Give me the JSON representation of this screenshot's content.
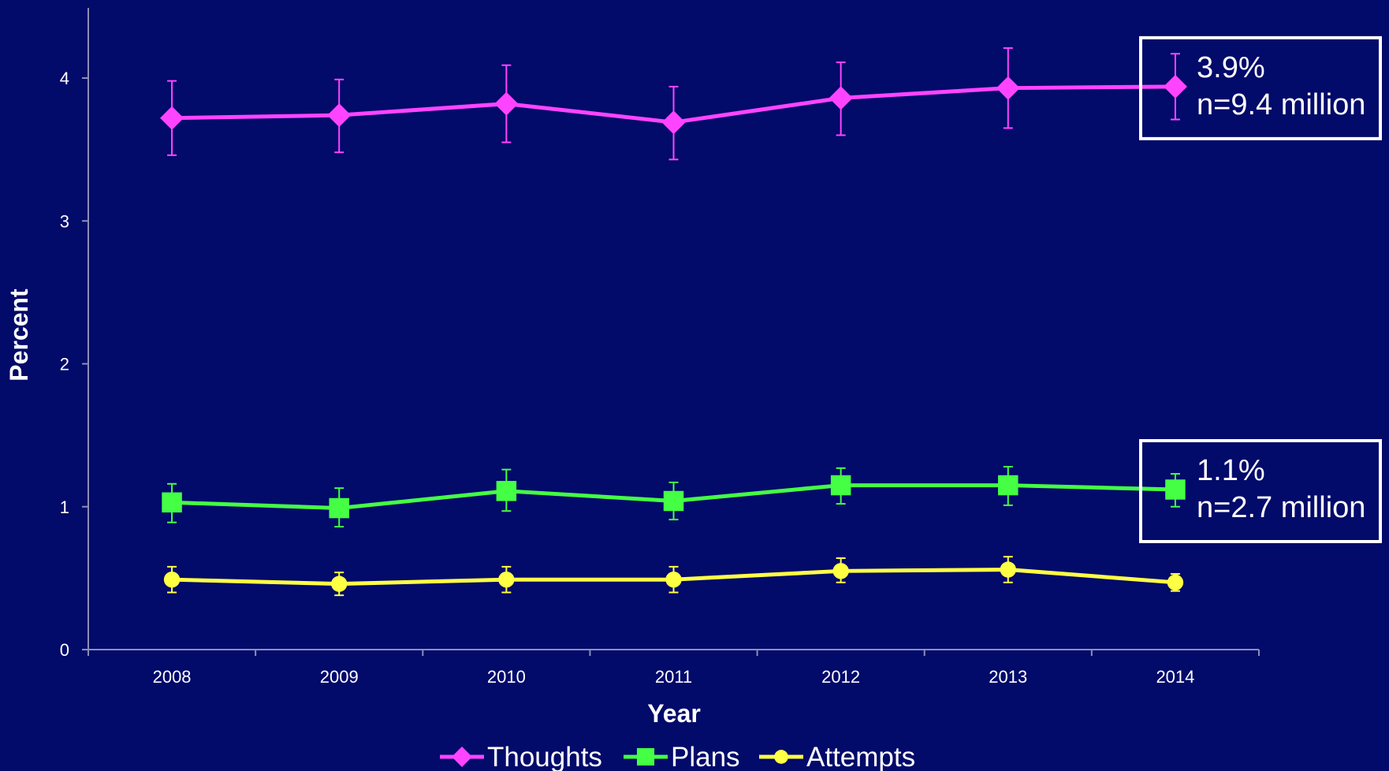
{
  "colors": {
    "background": "#020a6a",
    "axis": "#8a8fb8",
    "text": "#ffffff",
    "thoughts": "#ff44ff",
    "plans": "#44ff44",
    "attempts": "#ffff44"
  },
  "chart_data": {
    "type": "line",
    "title": "",
    "xlabel": "Year",
    "ylabel": "Percent",
    "ylim": [
      0,
      4.5
    ],
    "yticks": [
      "0",
      "1",
      "2",
      "3",
      "4"
    ],
    "categories": [
      "2008",
      "2009",
      "2010",
      "2011",
      "2012",
      "2013",
      "2014"
    ],
    "grid": false,
    "legend": "bottom",
    "error_bars": true,
    "series": [
      {
        "name": "Thoughts",
        "marker": "diamond",
        "color": "#ff44ff",
        "values": [
          3.72,
          3.74,
          3.82,
          3.69,
          3.86,
          3.93,
          3.94
        ],
        "lower": [
          3.46,
          3.48,
          3.55,
          3.43,
          3.6,
          3.65,
          3.71
        ],
        "upper": [
          3.98,
          3.99,
          4.09,
          3.94,
          4.11,
          4.21,
          4.17
        ]
      },
      {
        "name": "Plans",
        "marker": "square",
        "color": "#44ff44",
        "values": [
          1.03,
          0.99,
          1.11,
          1.04,
          1.15,
          1.15,
          1.12
        ],
        "lower": [
          0.89,
          0.86,
          0.97,
          0.91,
          1.02,
          1.01,
          1.0
        ],
        "upper": [
          1.16,
          1.13,
          1.26,
          1.17,
          1.27,
          1.28,
          1.23
        ]
      },
      {
        "name": "Attempts",
        "marker": "circle",
        "color": "#ffff44",
        "values": [
          0.49,
          0.46,
          0.49,
          0.49,
          0.55,
          0.56,
          0.47
        ],
        "lower": [
          0.4,
          0.38,
          0.4,
          0.4,
          0.47,
          0.47,
          0.41
        ],
        "upper": [
          0.58,
          0.54,
          0.58,
          0.58,
          0.64,
          0.65,
          0.53
        ]
      }
    ],
    "annotations": [
      {
        "series": "Thoughts",
        "lines": [
          "3.9%",
          "n=9.4 million"
        ]
      },
      {
        "series": "Plans",
        "lines": [
          "1.1%",
          "n=2.7 million"
        ]
      }
    ]
  }
}
